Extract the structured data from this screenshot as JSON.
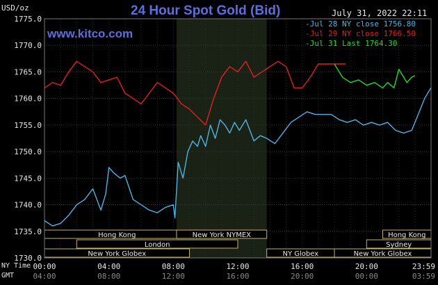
{
  "page": {
    "title": "24 Hour Spot Gold (Bid)",
    "brand": "www.kitco.com",
    "unit_label": "USD/oz",
    "timestamp": "July 31, 2022 22:11",
    "tz_primary_label": "NY Time",
    "tz_secondary_label": "GMT"
  },
  "legend": [
    {
      "text": "-Jul 28 NY close 1756.80",
      "color": "#4fb3e6"
    },
    {
      "text": "-Jul 29 NY close 1766.50",
      "color": "#e02020"
    },
    {
      "text": "-Jul 31 Last 1764.30",
      "color": "#22dd22"
    }
  ],
  "markets": [
    {
      "name": "Hong Kong",
      "start": 0,
      "end": 9
    },
    {
      "name": "London",
      "start": 2,
      "end": 12
    },
    {
      "name": "New York Globex",
      "start": 0,
      "end": 9
    },
    {
      "name": "New York NYMEX",
      "start": 8.2,
      "end": 13.8
    },
    {
      "name": "NY Globex",
      "start": 13.8,
      "end": 18
    },
    {
      "name": "Hong Kong",
      "start": 21,
      "end": 24
    },
    {
      "name": "Sydney",
      "start": 20,
      "end": 24
    },
    {
      "name": "New York Globex",
      "start": 18,
      "end": 24
    }
  ],
  "chart_data": {
    "type": "line",
    "title": "24 Hour Spot Gold (Bid)",
    "ylabel": "USD/oz",
    "ylim": [
      1730,
      1775
    ],
    "yticks": [
      "1775.0",
      "1770.0",
      "1765.0",
      "1760.0",
      "1755.0",
      "1750.0",
      "1745.0",
      "1740.0",
      "1735.0",
      "1730.0"
    ],
    "ytick_values": [
      1775,
      1770,
      1765,
      1760,
      1755,
      1750,
      1745,
      1740,
      1735,
      1730
    ],
    "xlim": [
      0,
      24
    ],
    "xticks": [
      "00:00",
      "04:00",
      "08:00",
      "12:00",
      "16:00",
      "20:00",
      "23:59"
    ],
    "xtick_values": [
      0,
      4,
      8,
      12,
      16,
      20,
      24
    ],
    "xticks_gmt": [
      "04:00",
      "08:00",
      "12:00",
      "16:00",
      "20:00",
      "00:00",
      "03:59"
    ],
    "shaded_range": [
      8.2,
      13.8
    ],
    "grid": true,
    "series": [
      {
        "name": "Jul 28 NY close 1756.80",
        "color": "#4fb3e6",
        "x": [
          0,
          0.5,
          1,
          1.5,
          2,
          2.5,
          3,
          3.5,
          3.8,
          4,
          4.3,
          4.7,
          5,
          5.5,
          6,
          6.5,
          7,
          7.5,
          8,
          8.1,
          8.3,
          8.6,
          8.9,
          9.2,
          9.5,
          9.7,
          10,
          10.3,
          10.6,
          10.9,
          11.2,
          11.5,
          11.8,
          12.1,
          12.5,
          13,
          13.4,
          13.8,
          14.3,
          14.8,
          15.3,
          15.8,
          16.3,
          16.8,
          17.3,
          17.8,
          18.3,
          18.8,
          19.3,
          19.8,
          20.3,
          20.8,
          21.3,
          21.8,
          22.3,
          22.8,
          23.2,
          23.6,
          23.99
        ],
        "values": [
          1737,
          1736,
          1736.5,
          1738,
          1740,
          1741,
          1743,
          1739,
          1742,
          1747,
          1746,
          1745,
          1745.5,
          1741,
          1740,
          1739,
          1738.5,
          1739.5,
          1740,
          1737.5,
          1748,
          1745,
          1750,
          1752,
          1751,
          1753,
          1751,
          1755,
          1752.5,
          1756,
          1755,
          1753.5,
          1755.5,
          1754,
          1756,
          1752,
          1753,
          1752.5,
          1751.5,
          1753.5,
          1755.5,
          1756.5,
          1757.5,
          1757,
          1757,
          1757,
          1756,
          1755.5,
          1756,
          1755,
          1755.5,
          1755,
          1755.5,
          1754,
          1753.5,
          1754,
          1757,
          1760,
          1762
        ]
      },
      {
        "name": "Jul 29 NY close 1766.50",
        "color": "#e02020",
        "x": [
          0,
          0.5,
          1,
          1.5,
          2,
          2.5,
          3,
          3.5,
          4,
          4.5,
          5,
          5.5,
          6,
          6.5,
          7,
          7.5,
          8,
          8.5,
          9,
          9.5,
          10,
          10.5,
          11,
          11.5,
          12,
          12.5,
          13,
          13.5,
          14,
          14.5,
          15,
          15.5,
          16,
          16.5,
          17,
          17.5,
          18,
          18.3,
          18.7
        ],
        "values": [
          1762,
          1763,
          1762.5,
          1765,
          1767,
          1766,
          1765,
          1763,
          1763.5,
          1764,
          1761,
          1760,
          1759,
          1761,
          1763,
          1762,
          1761,
          1759,
          1758,
          1756.5,
          1755,
          1760,
          1764,
          1766,
          1765,
          1767,
          1764,
          1765,
          1766,
          1767,
          1766,
          1762,
          1762,
          1764,
          1766.5,
          1766.5,
          1766.5,
          1766.5,
          1766.5
        ]
      },
      {
        "name": "Jul 31 Last 1764.30",
        "color": "#22dd22",
        "x": [
          18,
          18.5,
          19,
          19.5,
          20,
          20.5,
          21,
          21.3,
          21.7,
          22,
          22.5,
          22.8,
          23
        ],
        "values": [
          1766.5,
          1764,
          1763,
          1763.5,
          1762.5,
          1763,
          1762,
          1763,
          1762,
          1765.5,
          1763,
          1764,
          1764.3
        ]
      }
    ]
  }
}
